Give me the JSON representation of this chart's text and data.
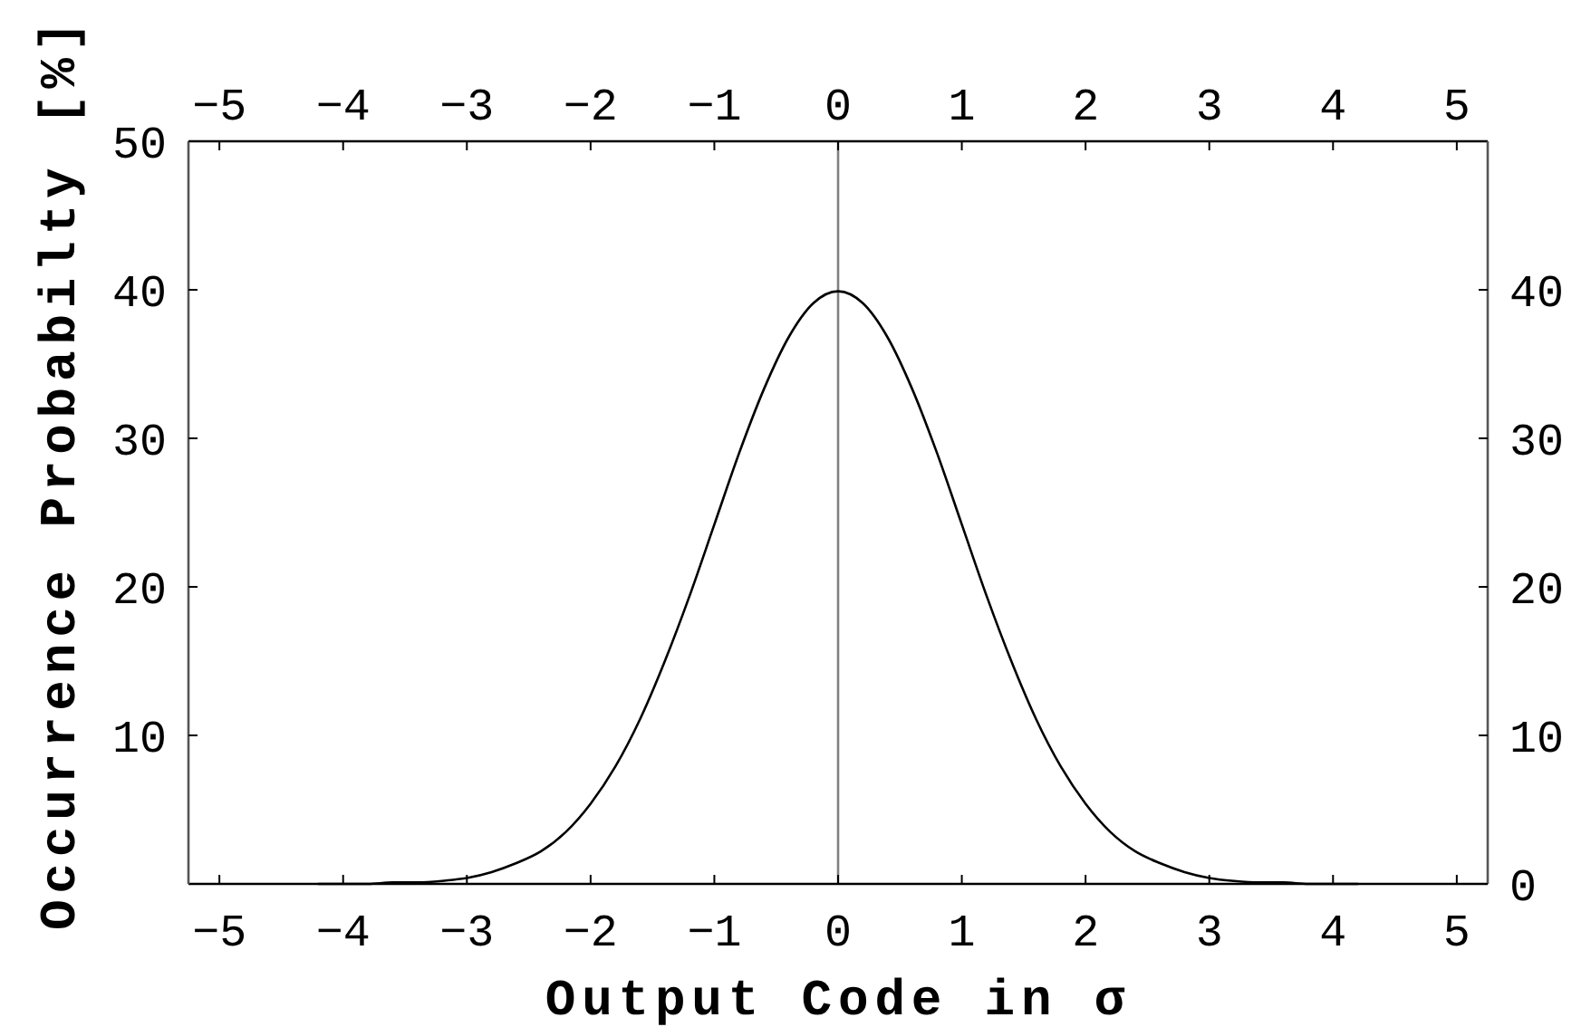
{
  "chart_data": {
    "type": "line",
    "xlabel": "Output Code in σ",
    "ylabel": "Occurrence Probabilty [%]",
    "x": [
      -4.2,
      -4.0,
      -3.8,
      -3.6,
      -3.4,
      -3.2,
      -3.0,
      -2.8,
      -2.6,
      -2.4,
      -2.2,
      -2.0,
      -1.8,
      -1.6,
      -1.4,
      -1.2,
      -1.0,
      -0.8,
      -0.6,
      -0.4,
      -0.2,
      0,
      0.2,
      0.4,
      0.6,
      0.8,
      1.0,
      1.2,
      1.4,
      1.6,
      1.8,
      2.0,
      2.2,
      2.4,
      2.6,
      2.8,
      3.0,
      3.2,
      3.4,
      3.6,
      3.8,
      4.0,
      4.2
    ],
    "series": [
      {
        "color": "#000000",
        "values": [
          0.0,
          0.0,
          0.0,
          0.1,
          0.1,
          0.2,
          0.4,
          0.8,
          1.4,
          2.2,
          3.5,
          5.4,
          7.9,
          11.1,
          15.0,
          19.4,
          24.2,
          29.0,
          33.3,
          36.8,
          39.1,
          39.9,
          39.1,
          36.8,
          33.3,
          29.0,
          24.2,
          19.4,
          15.0,
          11.1,
          7.9,
          5.4,
          3.5,
          2.2,
          1.4,
          0.8,
          0.4,
          0.2,
          0.1,
          0.1,
          0.0,
          0.0,
          0.0
        ]
      }
    ],
    "xlim": [
      -5.25,
      5.25
    ],
    "xticks": [
      {
        "value": -5,
        "label": "−5"
      },
      {
        "value": -4,
        "label": "−4"
      },
      {
        "value": -3,
        "label": "−3"
      },
      {
        "value": -2,
        "label": "−2"
      },
      {
        "value": -1,
        "label": "−1"
      },
      0,
      1,
      2,
      3,
      4,
      5
    ],
    "x2lim": [
      -5.25,
      5.25
    ],
    "x2ticks": [
      {
        "value": -5,
        "label": "−5"
      },
      {
        "value": -4,
        "label": "−4"
      },
      {
        "value": -3,
        "label": "−3"
      },
      {
        "value": -2,
        "label": "−2"
      },
      {
        "value": -1,
        "label": "−1"
      },
      0,
      1,
      2,
      3,
      4,
      5
    ],
    "ylim": [
      0,
      50
    ],
    "yticks": [
      10,
      20,
      30,
      40,
      50
    ],
    "y2lim": [
      0,
      50
    ],
    "y2ticks": [
      0,
      10,
      20,
      30,
      40
    ],
    "ref_lines": [
      {
        "axis": "x",
        "value": 0,
        "color": "#808080"
      }
    ]
  }
}
